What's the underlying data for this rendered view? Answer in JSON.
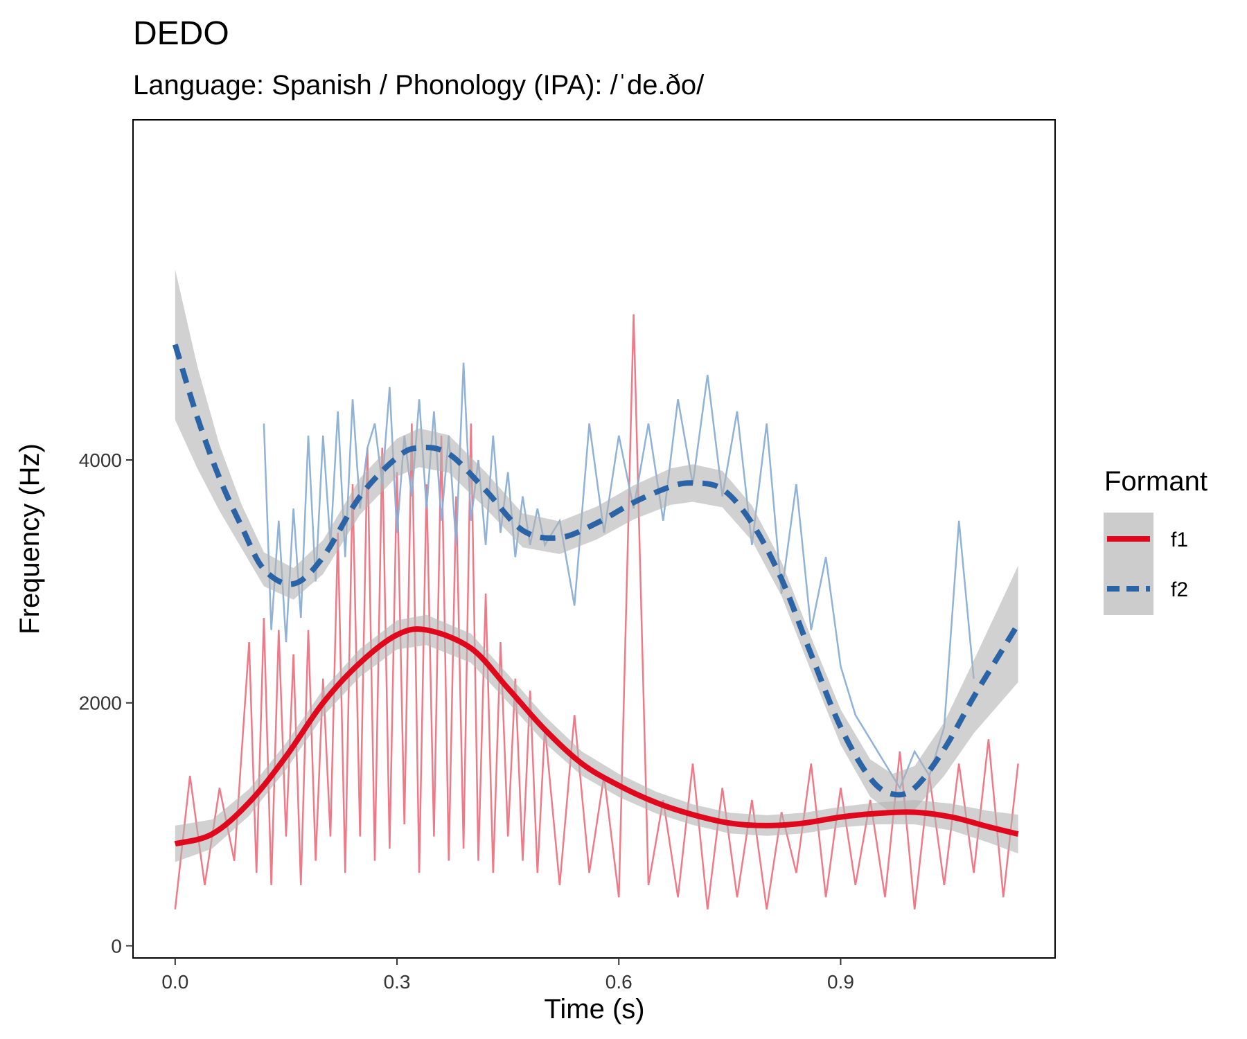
{
  "chart_data": {
    "type": "line",
    "title": "DEDO",
    "subtitle": "Language: Spanish / Phonology (IPA): /ˈde.ðo/",
    "xlabel": "Time (s)",
    "ylabel": "Frequency (Hz)",
    "xlim": [
      -0.057,
      1.19
    ],
    "ylim": [
      -100,
      6800
    ],
    "x_ticks": [
      0.0,
      0.3,
      0.6,
      0.9
    ],
    "x_tick_labels": [
      "0.0",
      "0.3",
      "0.6",
      "0.9"
    ],
    "y_ticks": [
      0,
      2000,
      4000
    ],
    "y_tick_labels": [
      "0",
      "2000",
      "4000"
    ],
    "grid": false,
    "legend": {
      "title": "Formant",
      "position": "right",
      "entries": [
        {
          "label": "f1",
          "color": "#e0081c",
          "dash": "solid"
        },
        {
          "label": "f2",
          "color": "#2b64a6",
          "dash": "dashed"
        }
      ]
    },
    "colors": {
      "f1_raw": "#ee7381",
      "f2_raw": "#8aaed5",
      "f1_smooth": "#e0081c",
      "f2_smooth": "#2b64a6",
      "ribbon": "#b3b3b3"
    },
    "series": [
      {
        "name": "f1",
        "smooth": {
          "x": [
            0.0,
            0.05,
            0.1,
            0.15,
            0.2,
            0.25,
            0.3,
            0.34,
            0.4,
            0.45,
            0.5,
            0.55,
            0.6,
            0.65,
            0.7,
            0.75,
            0.8,
            0.85,
            0.9,
            0.95,
            1.0,
            1.05,
            1.1,
            1.14
          ],
          "y": [
            840,
            920,
            1180,
            1560,
            2000,
            2330,
            2560,
            2600,
            2450,
            2120,
            1780,
            1500,
            1320,
            1180,
            1080,
            1010,
            990,
            1010,
            1060,
            1090,
            1100,
            1060,
            980,
            920
          ],
          "ci": [
            150,
            120,
            110,
            110,
            110,
            115,
            120,
            125,
            120,
            115,
            110,
            100,
            95,
            90,
            85,
            85,
            85,
            85,
            85,
            90,
            100,
            110,
            130,
            160
          ]
        },
        "raw": {
          "x": [
            0.0,
            0.02,
            0.04,
            0.06,
            0.08,
            0.1,
            0.11,
            0.12,
            0.13,
            0.14,
            0.15,
            0.16,
            0.17,
            0.18,
            0.19,
            0.2,
            0.21,
            0.22,
            0.23,
            0.24,
            0.25,
            0.26,
            0.27,
            0.28,
            0.29,
            0.3,
            0.31,
            0.32,
            0.33,
            0.34,
            0.35,
            0.36,
            0.37,
            0.38,
            0.39,
            0.4,
            0.41,
            0.42,
            0.43,
            0.44,
            0.45,
            0.46,
            0.47,
            0.48,
            0.49,
            0.5,
            0.52,
            0.54,
            0.56,
            0.58,
            0.6,
            0.62,
            0.64,
            0.66,
            0.68,
            0.7,
            0.72,
            0.74,
            0.76,
            0.78,
            0.8,
            0.82,
            0.84,
            0.86,
            0.88,
            0.9,
            0.92,
            0.94,
            0.96,
            0.98,
            1.0,
            1.02,
            1.04,
            1.06,
            1.08,
            1.1,
            1.12,
            1.14
          ],
          "y": [
            300,
            1400,
            500,
            1300,
            700,
            2500,
            600,
            2700,
            500,
            2600,
            900,
            2400,
            500,
            2600,
            700,
            2200,
            900,
            3400,
            600,
            3800,
            900,
            4100,
            700,
            4100,
            800,
            3900,
            1000,
            4300,
            600,
            3800,
            900,
            4200,
            700,
            3700,
            800,
            4300,
            700,
            2900,
            600,
            2500,
            900,
            2200,
            700,
            2100,
            600,
            1800,
            500,
            1900,
            600,
            1400,
            400,
            5200,
            500,
            1200,
            400,
            1500,
            300,
            1300,
            400,
            1200,
            300,
            1100,
            600,
            1500,
            400,
            1300,
            500,
            1200,
            400,
            1600,
            300,
            1400,
            500,
            1500,
            600,
            1700,
            400,
            1500
          ]
        }
      },
      {
        "name": "f2",
        "smooth": {
          "x": [
            0.0,
            0.03,
            0.06,
            0.09,
            0.12,
            0.16,
            0.2,
            0.25,
            0.3,
            0.33,
            0.37,
            0.42,
            0.47,
            0.52,
            0.57,
            0.62,
            0.67,
            0.7,
            0.74,
            0.78,
            0.82,
            0.86,
            0.9,
            0.94,
            0.97,
            1.0,
            1.04,
            1.08,
            1.12,
            1.14
          ],
          "y": [
            4950,
            4350,
            3850,
            3450,
            3100,
            2980,
            3200,
            3700,
            4020,
            4100,
            4050,
            3750,
            3420,
            3360,
            3480,
            3650,
            3780,
            3810,
            3760,
            3480,
            3020,
            2400,
            1800,
            1380,
            1250,
            1300,
            1620,
            2050,
            2450,
            2650
          ]
        },
        "ci": [
          620,
          420,
          270,
          180,
          140,
          130,
          140,
          150,
          155,
          160,
          155,
          150,
          140,
          135,
          135,
          140,
          150,
          155,
          150,
          145,
          140,
          140,
          145,
          155,
          165,
          180,
          220,
          300,
          420,
          480
        ],
        "raw": {
          "x": [
            0.12,
            0.13,
            0.14,
            0.15,
            0.16,
            0.17,
            0.18,
            0.19,
            0.2,
            0.21,
            0.22,
            0.23,
            0.24,
            0.25,
            0.26,
            0.27,
            0.28,
            0.29,
            0.3,
            0.31,
            0.32,
            0.33,
            0.34,
            0.35,
            0.36,
            0.37,
            0.38,
            0.39,
            0.4,
            0.41,
            0.42,
            0.43,
            0.44,
            0.45,
            0.46,
            0.47,
            0.48,
            0.49,
            0.5,
            0.52,
            0.54,
            0.56,
            0.58,
            0.6,
            0.62,
            0.64,
            0.66,
            0.68,
            0.7,
            0.72,
            0.74,
            0.76,
            0.78,
            0.8,
            0.82,
            0.84,
            0.86,
            0.88,
            0.9,
            0.92,
            0.94,
            0.96,
            0.98,
            1.0,
            1.02,
            1.04,
            1.06,
            1.08
          ],
          "y": [
            4300,
            2600,
            3500,
            2500,
            3600,
            2700,
            4200,
            3000,
            4200,
            3300,
            4400,
            3200,
            4500,
            3600,
            4100,
            4300,
            3800,
            4600,
            3400,
            4200,
            3700,
            4500,
            3600,
            4400,
            3500,
            4200,
            3300,
            4800,
            3500,
            4000,
            3300,
            4200,
            3400,
            3900,
            3200,
            3700,
            3300,
            3600,
            3300,
            3500,
            2800,
            4300,
            3400,
            4200,
            3600,
            4300,
            3500,
            4500,
            3800,
            4700,
            3700,
            4400,
            3300,
            4300,
            2900,
            3800,
            2600,
            3200,
            2300,
            1900,
            1700,
            1500,
            1300,
            1600,
            1400,
            1800,
            3500,
            2200
          ]
        }
      }
    ]
  }
}
